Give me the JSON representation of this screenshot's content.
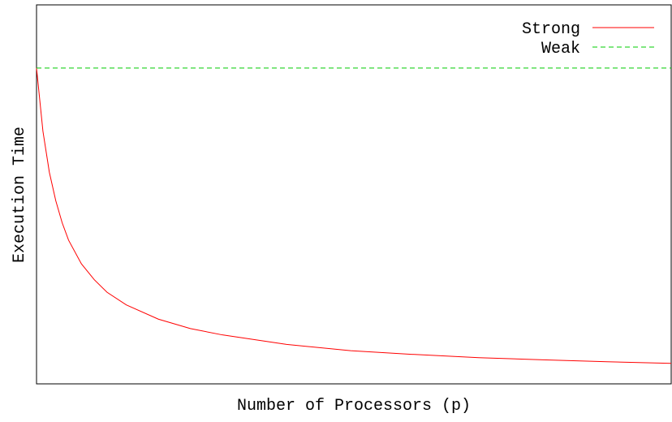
{
  "chart_data": {
    "type": "line",
    "title": "",
    "xlabel": "Number of Processors (p)",
    "ylabel": "Execution Time",
    "x_ticks_shown": false,
    "y_ticks_shown": false,
    "grid": false,
    "legend_placement": "top-right",
    "xlim": [
      1,
      100
    ],
    "ylim": [
      0,
      1.2
    ],
    "series": [
      {
        "name": "Strong",
        "color": "#ff0000",
        "style": "solid",
        "x": [
          1,
          2,
          3,
          4,
          5,
          6,
          8,
          10,
          12,
          15,
          20,
          25,
          30,
          40,
          50,
          60,
          70,
          80,
          90,
          100
        ],
        "y": [
          1.0,
          0.8,
          0.67,
          0.58,
          0.51,
          0.455,
          0.38,
          0.33,
          0.29,
          0.25,
          0.205,
          0.175,
          0.155,
          0.125,
          0.105,
          0.093,
          0.083,
          0.076,
          0.07,
          0.065
        ]
      },
      {
        "name": "Weak",
        "color": "#00cc00",
        "style": "dashed",
        "x": [
          1,
          100
        ],
        "y": [
          1.0,
          1.0
        ]
      }
    ]
  }
}
